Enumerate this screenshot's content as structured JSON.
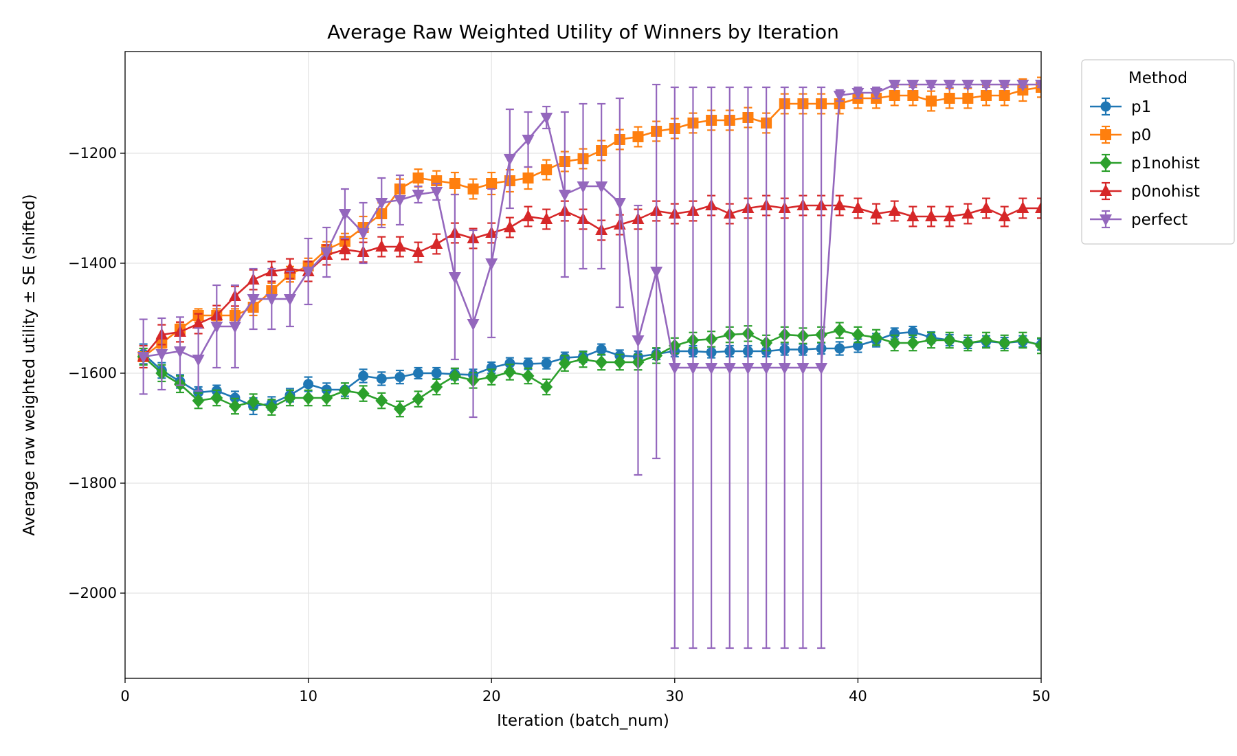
{
  "chart_data": {
    "type": "line",
    "title": "Average Raw Weighted Utility of Winners by Iteration",
    "xlabel": "Iteration (batch_num)",
    "ylabel": "Average raw weighted utility ± SE (shifted)",
    "xlim": [
      0,
      50
    ],
    "ylim": [
      -2155,
      -1015
    ],
    "xticks": [
      0,
      10,
      20,
      30,
      40,
      50
    ],
    "yticks": [
      -2000,
      -1800,
      -1600,
      -1400,
      -1200
    ],
    "ytick_labels": [
      "−2000",
      "−1800",
      "−1600",
      "−1400",
      "−1200"
    ],
    "grid": true,
    "legend": {
      "title": "Method",
      "position": "outside-top-right"
    },
    "error_bars": "± SE",
    "series": [
      {
        "name": "p1",
        "color": "#1f77b4",
        "marker": "circle",
        "x": [
          1,
          2,
          3,
          4,
          5,
          6,
          7,
          8,
          9,
          10,
          11,
          12,
          13,
          14,
          15,
          16,
          17,
          18,
          19,
          20,
          21,
          22,
          23,
          24,
          25,
          26,
          27,
          28,
          29,
          30,
          31,
          32,
          33,
          34,
          35,
          36,
          37,
          38,
          39,
          40,
          41,
          42,
          43,
          44,
          45,
          46,
          47,
          48,
          49,
          50
        ],
        "y": [
          -1565,
          -1595,
          -1615,
          -1635,
          -1632,
          -1645,
          -1660,
          -1655,
          -1640,
          -1620,
          -1630,
          -1630,
          -1605,
          -1610,
          -1607,
          -1600,
          -1600,
          -1602,
          -1603,
          -1590,
          -1582,
          -1583,
          -1582,
          -1572,
          -1570,
          -1557,
          -1568,
          -1570,
          -1565,
          -1560,
          -1560,
          -1562,
          -1560,
          -1560,
          -1560,
          -1557,
          -1557,
          -1555,
          -1555,
          -1550,
          -1540,
          -1528,
          -1525,
          -1535,
          -1540,
          -1545,
          -1542,
          -1545,
          -1542,
          -1548
        ],
        "se": [
          18,
          14,
          12,
          10,
          10,
          12,
          15,
          12,
          12,
          13,
          12,
          12,
          12,
          12,
          12,
          10,
          10,
          10,
          10,
          10,
          10,
          10,
          10,
          10,
          10,
          10,
          10,
          10,
          10,
          10,
          10,
          10,
          10,
          10,
          10,
          10,
          10,
          10,
          12,
          12,
          12,
          10,
          10,
          10,
          10,
          10,
          10,
          10,
          10,
          10
        ]
      },
      {
        "name": "p0",
        "color": "#ff7f0e",
        "marker": "square",
        "x": [
          1,
          2,
          3,
          4,
          5,
          6,
          7,
          8,
          9,
          10,
          11,
          12,
          13,
          14,
          15,
          16,
          17,
          18,
          19,
          20,
          21,
          22,
          23,
          24,
          25,
          26,
          27,
          28,
          29,
          30,
          31,
          32,
          33,
          34,
          35,
          36,
          37,
          38,
          39,
          40,
          41,
          42,
          43,
          44,
          45,
          46,
          47,
          48,
          49,
          50
        ],
        "y": [
          -1570,
          -1545,
          -1520,
          -1495,
          -1495,
          -1495,
          -1480,
          -1450,
          -1420,
          -1405,
          -1375,
          -1360,
          -1335,
          -1310,
          -1265,
          -1245,
          -1250,
          -1255,
          -1265,
          -1255,
          -1250,
          -1245,
          -1230,
          -1215,
          -1210,
          -1195,
          -1175,
          -1170,
          -1160,
          -1155,
          -1145,
          -1140,
          -1140,
          -1135,
          -1145,
          -1110,
          -1110,
          -1110,
          -1110,
          -1100,
          -1100,
          -1095,
          -1095,
          -1105,
          -1100,
          -1100,
          -1095,
          -1095,
          -1085,
          -1080
        ],
        "se": [
          15,
          12,
          12,
          12,
          12,
          12,
          15,
          14,
          14,
          14,
          14,
          14,
          20,
          20,
          18,
          16,
          18,
          20,
          18,
          20,
          20,
          20,
          18,
          18,
          18,
          18,
          18,
          18,
          18,
          18,
          18,
          18,
          18,
          18,
          18,
          18,
          18,
          18,
          18,
          18,
          18,
          18,
          18,
          18,
          18,
          18,
          18,
          18,
          20,
          18
        ]
      },
      {
        "name": "p1nohist",
        "color": "#2ca02c",
        "marker": "diamond",
        "x": [
          1,
          2,
          3,
          4,
          5,
          6,
          7,
          8,
          9,
          10,
          11,
          12,
          13,
          14,
          15,
          16,
          17,
          18,
          19,
          20,
          21,
          22,
          23,
          24,
          25,
          26,
          27,
          28,
          29,
          30,
          31,
          32,
          33,
          34,
          35,
          36,
          37,
          38,
          39,
          40,
          41,
          42,
          43,
          44,
          45,
          46,
          47,
          48,
          49,
          50
        ],
        "y": [
          -1570,
          -1600,
          -1620,
          -1650,
          -1645,
          -1660,
          -1652,
          -1662,
          -1645,
          -1645,
          -1645,
          -1632,
          -1637,
          -1650,
          -1665,
          -1647,
          -1625,
          -1605,
          -1613,
          -1607,
          -1598,
          -1605,
          -1625,
          -1582,
          -1575,
          -1580,
          -1580,
          -1580,
          -1568,
          -1550,
          -1540,
          -1538,
          -1530,
          -1528,
          -1545,
          -1530,
          -1532,
          -1530,
          -1522,
          -1530,
          -1535,
          -1545,
          -1545,
          -1540,
          -1540,
          -1545,
          -1540,
          -1545,
          -1540,
          -1550
        ],
        "se": [
          15,
          15,
          15,
          14,
          14,
          14,
          14,
          14,
          14,
          14,
          14,
          14,
          14,
          14,
          14,
          14,
          14,
          14,
          14,
          14,
          14,
          14,
          14,
          14,
          14,
          14,
          14,
          14,
          14,
          14,
          14,
          14,
          14,
          14,
          14,
          14,
          14,
          14,
          14,
          14,
          14,
          14,
          14,
          14,
          14,
          14,
          14,
          14,
          14,
          14
        ]
      },
      {
        "name": "p0nohist",
        "color": "#d62728",
        "marker": "triangle-up",
        "x": [
          1,
          2,
          3,
          4,
          5,
          6,
          7,
          8,
          9,
          10,
          11,
          12,
          13,
          14,
          15,
          16,
          17,
          18,
          19,
          20,
          21,
          22,
          23,
          24,
          25,
          26,
          27,
          28,
          29,
          30,
          31,
          32,
          33,
          34,
          35,
          36,
          37,
          38,
          39,
          40,
          41,
          42,
          43,
          44,
          45,
          46,
          47,
          48,
          49,
          50
        ],
        "y": [
          -1570,
          -1530,
          -1525,
          -1510,
          -1495,
          -1460,
          -1430,
          -1415,
          -1410,
          -1415,
          -1385,
          -1375,
          -1380,
          -1370,
          -1370,
          -1380,
          -1365,
          -1345,
          -1355,
          -1345,
          -1335,
          -1315,
          -1320,
          -1305,
          -1320,
          -1340,
          -1330,
          -1320,
          -1305,
          -1310,
          -1305,
          -1295,
          -1310,
          -1300,
          -1295,
          -1300,
          -1295,
          -1295,
          -1295,
          -1300,
          -1310,
          -1305,
          -1315,
          -1315,
          -1315,
          -1310,
          -1300,
          -1315,
          -1300,
          -1300
        ],
        "se": [
          20,
          18,
          18,
          18,
          18,
          18,
          18,
          18,
          18,
          18,
          18,
          18,
          18,
          18,
          18,
          18,
          18,
          18,
          18,
          18,
          18,
          18,
          18,
          18,
          18,
          18,
          18,
          18,
          18,
          18,
          18,
          18,
          18,
          18,
          18,
          18,
          18,
          18,
          18,
          18,
          18,
          18,
          18,
          18,
          18,
          18,
          18,
          18,
          18,
          18
        ]
      },
      {
        "name": "perfect",
        "color": "#9467bd",
        "marker": "triangle-down",
        "x": [
          1,
          2,
          3,
          4,
          5,
          6,
          7,
          8,
          9,
          10,
          11,
          12,
          13,
          14,
          15,
          16,
          17,
          18,
          19,
          20,
          21,
          22,
          23,
          24,
          25,
          26,
          27,
          28,
          29,
          30,
          31,
          32,
          33,
          34,
          35,
          36,
          37,
          38,
          39,
          40,
          41,
          42,
          43,
          44,
          45,
          46,
          47,
          48,
          49,
          50
        ],
        "y": [
          -1570,
          -1565,
          -1560,
          -1575,
          -1515,
          -1515,
          -1465,
          -1465,
          -1465,
          -1415,
          -1380,
          -1310,
          -1345,
          -1290,
          -1285,
          -1275,
          -1270,
          -1425,
          -1510,
          -1400,
          -1210,
          -1175,
          -1135,
          -1275,
          -1260,
          -1260,
          -1290,
          -1540,
          -1415,
          -1590,
          -1590,
          -1590,
          -1590,
          -1590,
          -1590,
          -1590,
          -1590,
          -1590,
          -1095,
          -1090,
          -1090,
          -1075,
          -1075,
          -1075,
          -1075,
          -1075,
          -1075,
          -1075,
          -1075,
          -1075
        ],
        "se": [
          68,
          65,
          62,
          57,
          75,
          75,
          55,
          55,
          50,
          60,
          45,
          45,
          55,
          45,
          45,
          15,
          15,
          150,
          170,
          135,
          90,
          50,
          20,
          150,
          150,
          150,
          190,
          245,
          340,
          510,
          510,
          510,
          510,
          510,
          510,
          510,
          510,
          510,
          10,
          10,
          10,
          5,
          5,
          5,
          5,
          5,
          5,
          5,
          5,
          5
        ]
      }
    ]
  }
}
